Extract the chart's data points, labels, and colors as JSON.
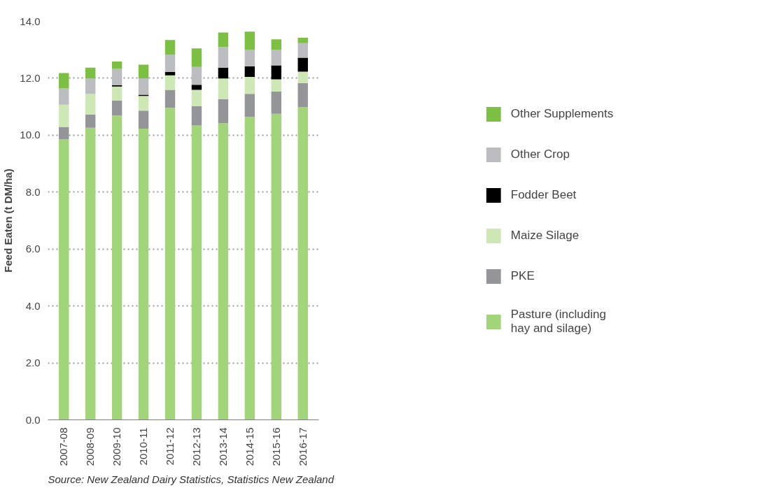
{
  "chart_data": {
    "type": "bar",
    "stacked": true,
    "ylabel": "Feed Eaten (t DM/ha)",
    "categories": [
      "2007-08",
      "2008-09",
      "2009-10",
      "2010-11",
      "2011-12",
      "2012-13",
      "2013-14",
      "2014-15",
      "2015-16",
      "2016-17"
    ],
    "series": [
      {
        "name": "Pasture (including hay and silage)",
        "color": "#a2d47a",
        "values": [
          9.86,
          10.26,
          10.69,
          10.23,
          10.96,
          10.34,
          10.42,
          10.64,
          10.75,
          10.99
        ]
      },
      {
        "name": "PKE",
        "color": "#939598",
        "values": [
          0.43,
          0.46,
          0.52,
          0.63,
          0.63,
          0.68,
          0.84,
          0.81,
          0.78,
          0.84
        ]
      },
      {
        "name": "Maize Silage",
        "color": "#cde8b5",
        "values": [
          0.78,
          0.73,
          0.5,
          0.52,
          0.51,
          0.57,
          0.73,
          0.6,
          0.43,
          0.4
        ]
      },
      {
        "name": "Fodder Beet",
        "color": "#000000",
        "values": [
          0,
          0,
          0.04,
          0.04,
          0.12,
          0.18,
          0.38,
          0.37,
          0.49,
          0.49
        ]
      },
      {
        "name": "Other Crop",
        "color": "#bcbdc0",
        "values": [
          0.57,
          0.54,
          0.58,
          0.58,
          0.61,
          0.63,
          0.73,
          0.57,
          0.54,
          0.51
        ]
      },
      {
        "name": "Other Supplements",
        "color": "#7bbf43",
        "values": [
          0.54,
          0.38,
          0.26,
          0.48,
          0.51,
          0.65,
          0.51,
          0.65,
          0.38,
          0.19
        ]
      }
    ],
    "ylim": [
      0,
      14
    ],
    "yticks": [
      {
        "value": 0,
        "label": "0.0"
      },
      {
        "value": 2,
        "label": "2.0"
      },
      {
        "value": 4,
        "label": "4.0"
      },
      {
        "value": 6,
        "label": "6.0"
      },
      {
        "value": 8,
        "label": "8.0"
      },
      {
        "value": 10,
        "label": "10.0"
      },
      {
        "value": 12,
        "label": "12.0"
      },
      {
        "value": 14,
        "label": "14.0"
      }
    ],
    "grid": "y",
    "legend": "right",
    "annotations": [
      "Source: New Zealand Dairy Statistics, Statistics New Zealand"
    ]
  }
}
